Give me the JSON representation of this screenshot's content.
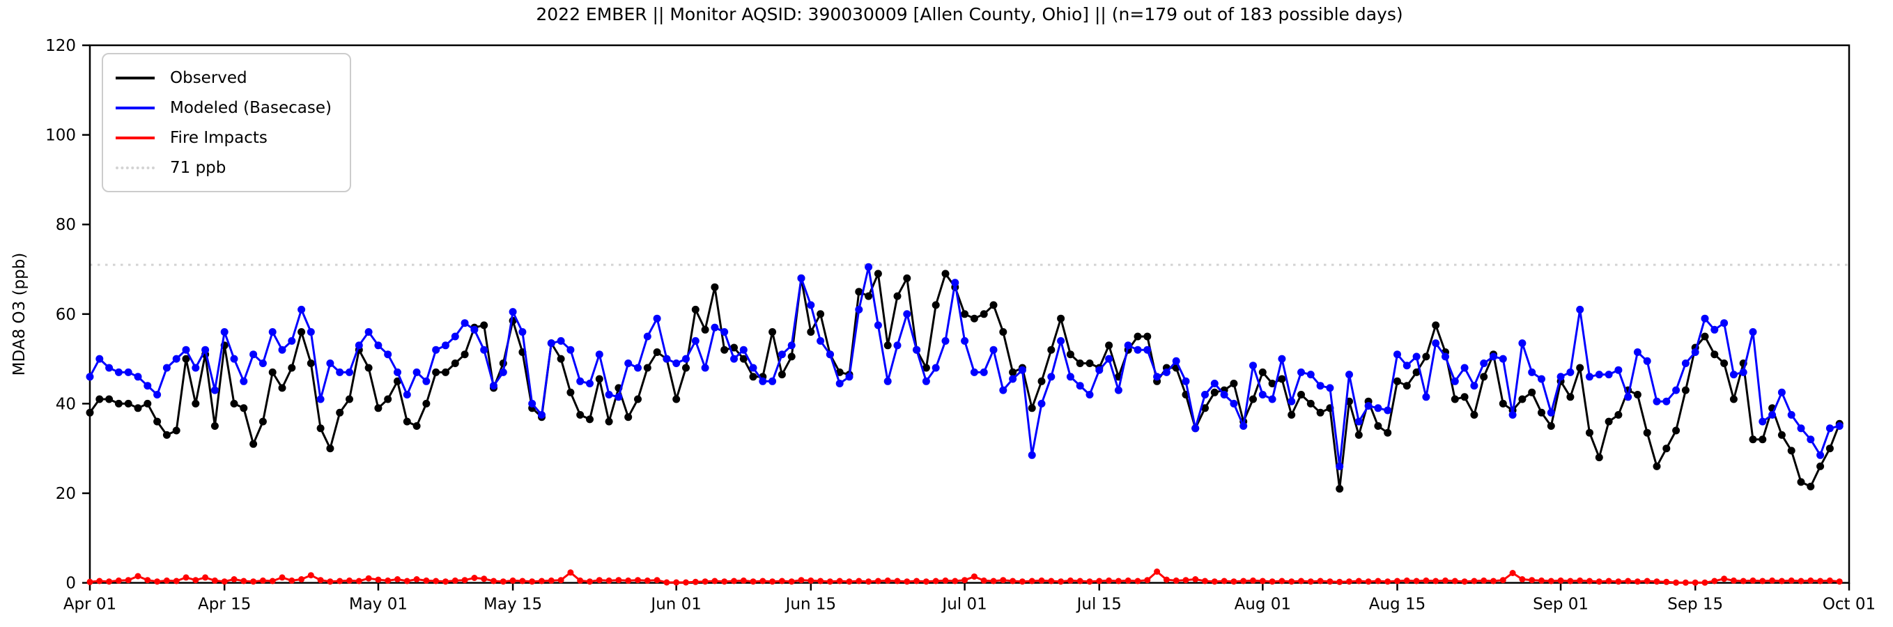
{
  "title": "2022 EMBER || Monitor AQSID: 390030009 [Allen County, Ohio] || (n=179 out of 183 possible days)",
  "y_axis": {
    "label": "MDA8 O3 (ppb)",
    "ticks": [
      0,
      20,
      40,
      60,
      80,
      100,
      120
    ],
    "min": 0,
    "max": 120
  },
  "x_axis": {
    "tick_labels": [
      "Apr 01",
      "Apr 15",
      "May 01",
      "May 15",
      "Jun 01",
      "Jun 15",
      "Jul 01",
      "Jul 15",
      "Aug 01",
      "Aug 15",
      "Sep 01",
      "Sep 15",
      "Oct 01"
    ],
    "tick_days": [
      0,
      14,
      30,
      44,
      61,
      75,
      91,
      105,
      122,
      136,
      153,
      167,
      183
    ]
  },
  "legend": {
    "items": [
      {
        "label": "Observed",
        "color": "#000000",
        "style": "solid"
      },
      {
        "label": "Modeled (Basecase)",
        "color": "#0000ff",
        "style": "solid"
      },
      {
        "label": "Fire Impacts",
        "color": "#ff0000",
        "style": "solid"
      },
      {
        "label": "71 ppb",
        "color": "#d3d3d3",
        "style": "dotted"
      }
    ]
  },
  "colors": {
    "observed": "#000000",
    "modeled": "#0000ff",
    "fire": "#ff0000",
    "threshold": "#d3d3d3",
    "axes": "#000000",
    "background": "#ffffff"
  },
  "chart_data": {
    "type": "line",
    "title": "2022 EMBER || Monitor AQSID: 390030009 [Allen County, Ohio] || (n=179 out of 183 possible days)",
    "ylabel": "MDA8 O3 (ppb)",
    "ylim": [
      0,
      120
    ],
    "x_range": {
      "start": "2022-04-01",
      "end": "2022-10-01",
      "days_spanned": 183,
      "n_reported": "n=179 out of 183 possible days"
    },
    "grid": false,
    "legend_position": "upper left",
    "reference_line": {
      "value": 71,
      "label": "71 ppb",
      "style": "dotted",
      "color": "#d3d3d3"
    },
    "series": [
      {
        "name": "Observed",
        "color": "#000000",
        "marker": "circle",
        "values": [
          38,
          41,
          41,
          40,
          40,
          39,
          40,
          36,
          33,
          34,
          50,
          40,
          51,
          35,
          53,
          40,
          39,
          31,
          36,
          47,
          43.5,
          48,
          56,
          49,
          34.5,
          30,
          38,
          41,
          52,
          48,
          39,
          41,
          45,
          36,
          35,
          40,
          47,
          47,
          49,
          51,
          57,
          57.5,
          43.5,
          49,
          58.5,
          51.5,
          39,
          37,
          53.5,
          50,
          42.5,
          37.5,
          36.5,
          45.5,
          36,
          43.5,
          37,
          41,
          48,
          51.5,
          50,
          41,
          48,
          61,
          56.5,
          66,
          52,
          52.5,
          50,
          46,
          46,
          56,
          46.5,
          50.5,
          68,
          56,
          60,
          51,
          47,
          46.5,
          65,
          64,
          69,
          53,
          64,
          68,
          52,
          48,
          62,
          69,
          66,
          60,
          59,
          60,
          62,
          56,
          47,
          48,
          39,
          45,
          52,
          59,
          51,
          49,
          49,
          48,
          53,
          46,
          52,
          55,
          55,
          45,
          48,
          48,
          42,
          34.5,
          39,
          42.5,
          43,
          44.5,
          36,
          41,
          47,
          44.5,
          45.5,
          37.5,
          42,
          40,
          38,
          39,
          21,
          40.5,
          33,
          40.5,
          35,
          33.5,
          45,
          44,
          47,
          50.5,
          57.5,
          51.5,
          41,
          41.5,
          37.5,
          46,
          51,
          40,
          38.5,
          41,
          42.5,
          38,
          35,
          45,
          41.5,
          48,
          33.5,
          28,
          36,
          37.5,
          43,
          42,
          33.5,
          26,
          30,
          34,
          43,
          52.5,
          55,
          51,
          49,
          41,
          49,
          32,
          32,
          39,
          33,
          29.5,
          22.5,
          21.5,
          26,
          30,
          35.5
        ]
      },
      {
        "name": "Modeled (Basecase)",
        "color": "#0000ff",
        "marker": "circle",
        "values": [
          46,
          50,
          48,
          47,
          47,
          46,
          44,
          42,
          48,
          50,
          52,
          48,
          52,
          43,
          56,
          50,
          45,
          51,
          49,
          56,
          52,
          54,
          61,
          56,
          41,
          49,
          47,
          47,
          53,
          56,
          53,
          51,
          47,
          42,
          47,
          45,
          52,
          53,
          55,
          58,
          56.5,
          52,
          44,
          47,
          60.5,
          56,
          40,
          37.5,
          53.5,
          54,
          52,
          45,
          44.5,
          51,
          42,
          41.5,
          49,
          48,
          55,
          59,
          50,
          49,
          50,
          54,
          48,
          57,
          56,
          50,
          52,
          48,
          45,
          45,
          51,
          53,
          68,
          62,
          54,
          51,
          44.5,
          46,
          61,
          70.5,
          57.5,
          45,
          53,
          60,
          52,
          45,
          48,
          54,
          67,
          54,
          47,
          47,
          52,
          43,
          45.5,
          47.5,
          28.5,
          40,
          46,
          54,
          46,
          44,
          42,
          47.5,
          50,
          43,
          53,
          52,
          52,
          46,
          47,
          49.5,
          45,
          34.5,
          42,
          44.5,
          42,
          40,
          35,
          48.5,
          42,
          41,
          50,
          40.5,
          47,
          46.5,
          44,
          43.5,
          26,
          46.5,
          36,
          39.5,
          39,
          38.5,
          51,
          48.5,
          50.5,
          41.5,
          53.5,
          50.5,
          45,
          48,
          44,
          49,
          50.5,
          50,
          37.5,
          53.5,
          47,
          45.5,
          38,
          46,
          47,
          61,
          46,
          46.5,
          46.5,
          47.5,
          41.5,
          51.5,
          49.5,
          40.5,
          40.5,
          43,
          49,
          51.5,
          59,
          56.5,
          58,
          46.5,
          47,
          56,
          36,
          37.5,
          42.5,
          37.5,
          34.5,
          32,
          28.5,
          34.5,
          35
        ]
      },
      {
        "name": "Fire Impacts",
        "color": "#ff0000",
        "marker": "circle",
        "values": [
          0.2,
          0.4,
          0.3,
          0.5,
          0.6,
          1.5,
          0.6,
          0.3,
          0.5,
          0.4,
          1.2,
          0.6,
          1.2,
          0.5,
          0.3,
          0.8,
          0.4,
          0.3,
          0.5,
          0.4,
          1.2,
          0.5,
          0.8,
          1.7,
          0.6,
          0.3,
          0.4,
          0.5,
          0.4,
          1.0,
          0.7,
          0.5,
          0.8,
          0.4,
          0.8,
          0.5,
          0.4,
          0.3,
          0.5,
          0.6,
          1.1,
          0.9,
          0.4,
          0.3,
          0.5,
          0.4,
          0.3,
          0.4,
          0.5,
          0.6,
          2.3,
          0.5,
          0.3,
          0.6,
          0.5,
          0.6,
          0.5,
          0.6,
          0.5,
          0.6,
          0.1,
          0.1,
          0.1,
          0.2,
          0.3,
          0.4,
          0.3,
          0.4,
          0.5,
          0.3,
          0.4,
          0.3,
          0.4,
          0.3,
          0.6,
          0.5,
          0.4,
          0.3,
          0.4,
          0.3,
          0.4,
          0.3,
          0.4,
          0.5,
          0.4,
          0.3,
          0.4,
          0.3,
          0.4,
          0.5,
          0.4,
          0.6,
          1.4,
          0.5,
          0.4,
          0.6,
          0.4,
          0.3,
          0.4,
          0.5,
          0.4,
          0.3,
          0.5,
          0.4,
          0.3,
          0.4,
          0.5,
          0.4,
          0.5,
          0.4,
          0.6,
          2.5,
          0.7,
          0.5,
          0.6,
          0.8,
          0.4,
          0.3,
          0.4,
          0.3,
          0.4,
          0.5,
          0.4,
          0.3,
          0.4,
          0.3,
          0.4,
          0.3,
          0.4,
          0.3,
          0.2,
          0.3,
          0.4,
          0.3,
          0.4,
          0.3,
          0.4,
          0.5,
          0.4,
          0.5,
          0.4,
          0.5,
          0.4,
          0.3,
          0.4,
          0.5,
          0.4,
          0.6,
          2.2,
          0.8,
          0.6,
          0.5,
          0.4,
          0.5,
          0.4,
          0.5,
          0.4,
          0.3,
          0.4,
          0.3,
          0.4,
          0.3,
          0.4,
          0.3,
          0.2,
          0.05,
          0.05,
          0.05,
          0.05,
          0.4,
          0.9,
          0.5,
          0.4,
          0.5,
          0.4,
          0.5,
          0.4,
          0.5,
          0.4,
          0.5,
          0.4,
          0.5,
          0.3
        ]
      }
    ]
  }
}
